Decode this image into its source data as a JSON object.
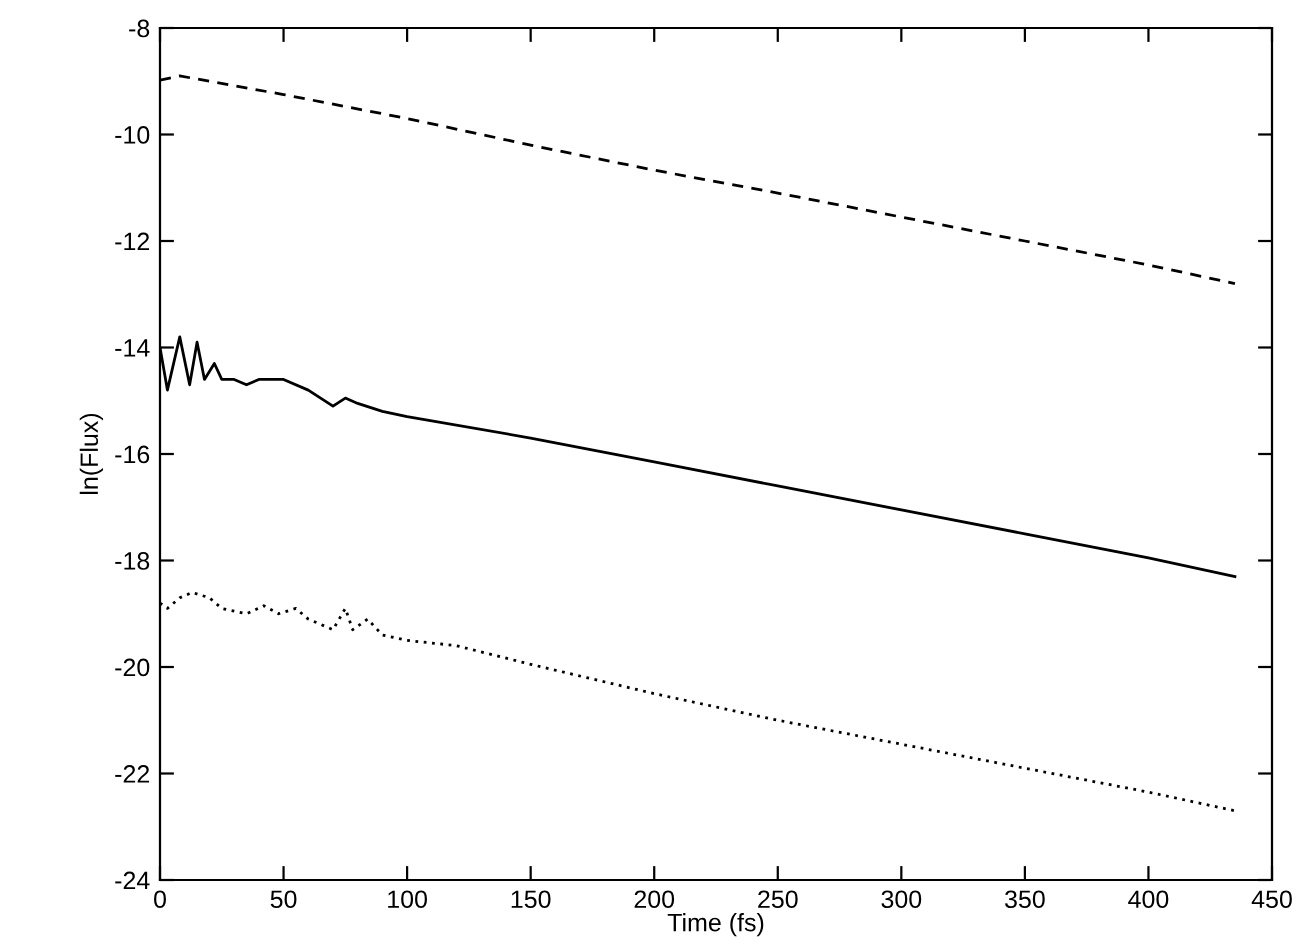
{
  "chart_data": {
    "type": "line",
    "xlabel": "Time (fs)",
    "ylabel": "ln(Flux)",
    "xlim": [
      0,
      450
    ],
    "xticks": [
      0,
      50,
      100,
      150,
      200,
      250,
      300,
      350,
      400,
      450
    ],
    "ylim": [
      -24,
      -8
    ],
    "yticks": [
      -24,
      -22,
      -20,
      -18,
      -16,
      -14,
      -12,
      -10,
      -8
    ],
    "grid": false,
    "series": [
      {
        "color": "#000000",
        "line_style": "dashed",
        "x": [
          0,
          8,
          20,
          50,
          100,
          150,
          200,
          250,
          300,
          350,
          400,
          435
        ],
        "values": [
          -8.98,
          -8.9,
          -9.0,
          -9.25,
          -9.7,
          -10.2,
          -10.67,
          -11.1,
          -11.55,
          -12.0,
          -12.45,
          -12.8
        ]
      },
      {
        "color": "#000000",
        "line_style": "solid",
        "x": [
          0,
          3,
          8,
          12,
          15,
          18,
          22,
          25,
          30,
          35,
          40,
          50,
          60,
          70,
          75,
          80,
          90,
          100,
          150,
          200,
          250,
          300,
          350,
          400,
          435
        ],
        "values": [
          -14.0,
          -14.8,
          -13.8,
          -14.7,
          -13.9,
          -14.6,
          -14.3,
          -14.6,
          -14.6,
          -14.7,
          -14.6,
          -14.6,
          -14.8,
          -15.1,
          -14.95,
          -15.05,
          -15.2,
          -15.3,
          -15.7,
          -16.15,
          -16.6,
          -17.05,
          -17.5,
          -17.95,
          -18.3
        ]
      },
      {
        "color": "#000000",
        "line_style": "dotted",
        "x": [
          0,
          3,
          8,
          13,
          20,
          25,
          35,
          42,
          48,
          55,
          60,
          70,
          75,
          78,
          84,
          90,
          100,
          120,
          150,
          200,
          250,
          300,
          350,
          400,
          435
        ],
        "values": [
          -18.8,
          -18.9,
          -18.7,
          -18.6,
          -18.7,
          -18.9,
          -19.0,
          -18.85,
          -19.0,
          -18.9,
          -19.1,
          -19.3,
          -18.9,
          -19.3,
          -19.1,
          -19.4,
          -19.5,
          -19.6,
          -19.95,
          -20.5,
          -21.0,
          -21.45,
          -21.9,
          -22.35,
          -22.7
        ]
      }
    ]
  }
}
